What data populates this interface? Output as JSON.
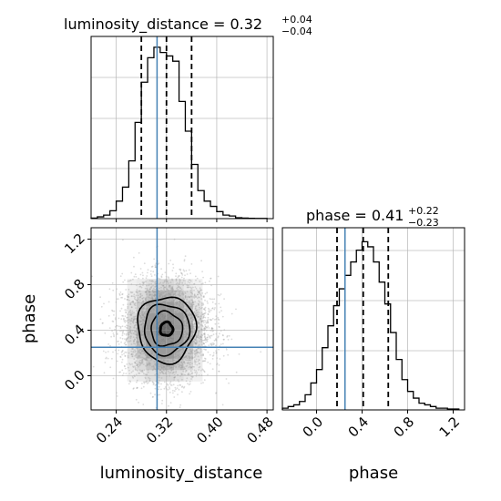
{
  "chart_data": {
    "type": "corner",
    "parameters": [
      "luminosity_distance",
      "phase"
    ],
    "truth": {
      "luminosity_distance": 0.305,
      "phase": 0.25
    },
    "colors": {
      "truth": "#4682b4",
      "hist": "#000000",
      "quantile": "#000000",
      "grid": "#b0b0b0",
      "points": "#9a9a9a"
    },
    "panels": {
      "luminosity_distance": {
        "title_prefix": "luminosity_distance = 0.32",
        "title_plus": "+0.04",
        "title_minus": "−0.04",
        "range": [
          0.2,
          0.49
        ],
        "bin_edges": [
          0.2,
          0.21,
          0.22,
          0.23,
          0.24,
          0.25,
          0.26,
          0.27,
          0.28,
          0.29,
          0.3,
          0.31,
          0.32,
          0.33,
          0.34,
          0.35,
          0.36,
          0.37,
          0.38,
          0.39,
          0.4,
          0.41,
          0.42,
          0.43,
          0.44,
          0.45,
          0.46,
          0.47,
          0.48
        ],
        "counts": [
          0.3,
          1.0,
          2.0,
          4.5,
          10.0,
          18.0,
          33.0,
          55.0,
          78.0,
          92.0,
          98.0,
          95.0,
          93.0,
          90.0,
          67.0,
          50.0,
          31.0,
          16.0,
          10.0,
          7.0,
          4.0,
          2.0,
          1.5,
          0.5,
          0.3,
          0.2,
          0.1,
          0.1
        ],
        "ymax": 100,
        "quantiles": [
          0.28,
          0.32,
          0.36
        ],
        "truth": 0.305
      },
      "phase": {
        "title_prefix": "phase = 0.41",
        "title_plus": "+0.22",
        "title_minus": "−0.23",
        "range": [
          -0.3,
          1.3
        ],
        "bin_edges": [
          -0.3,
          -0.25,
          -0.2,
          -0.15,
          -0.1,
          -0.05,
          0.0,
          0.05,
          0.1,
          0.15,
          0.2,
          0.25,
          0.3,
          0.35,
          0.4,
          0.45,
          0.5,
          0.55,
          0.6,
          0.65,
          0.7,
          0.75,
          0.8,
          0.85,
          0.9,
          0.95,
          1.0,
          1.05,
          1.1,
          1.15,
          1.2,
          1.25
        ],
        "counts": [
          1,
          2,
          3,
          5,
          9,
          16,
          24,
          37,
          50,
          62,
          72,
          80,
          88,
          95,
          100,
          97,
          88,
          76,
          63,
          46,
          30,
          18,
          11,
          7,
          4,
          3,
          2,
          1,
          1,
          0.5,
          0.5
        ],
        "ymax": 104,
        "quantiles": [
          0.18,
          0.41,
          0.63
        ],
        "truth": 0.25
      }
    },
    "scatter": {
      "x_range": [
        0.2,
        0.49
      ],
      "y_range": [
        -0.3,
        1.3
      ],
      "center": [
        0.32,
        0.41
      ],
      "sigma": [
        0.035,
        0.22
      ],
      "n_points": 4200,
      "contour_levels": [
        {
          "rx": 0.046,
          "ry": 0.29
        },
        {
          "rx": 0.036,
          "ry": 0.22
        },
        {
          "rx": 0.025,
          "ry": 0.15
        },
        {
          "rx": 0.01,
          "ry": 0.06
        }
      ],
      "density_grid": {
        "x_centers": [
          0.265,
          0.28,
          0.295,
          0.31,
          0.325,
          0.34,
          0.355,
          0.37
        ],
        "y_centers": [
          0.0,
          0.1,
          0.2,
          0.3,
          0.4,
          0.5,
          0.6,
          0.7,
          0.8
        ],
        "values": [
          [
            0.1,
            0.15,
            0.22,
            0.28,
            0.28,
            0.22,
            0.15,
            0.1
          ],
          [
            0.15,
            0.25,
            0.4,
            0.5,
            0.5,
            0.4,
            0.25,
            0.15
          ],
          [
            0.2,
            0.38,
            0.55,
            0.7,
            0.7,
            0.55,
            0.38,
            0.2
          ],
          [
            0.25,
            0.45,
            0.7,
            0.85,
            0.85,
            0.7,
            0.45,
            0.25
          ],
          [
            0.28,
            0.5,
            0.75,
            0.95,
            0.95,
            0.75,
            0.5,
            0.28
          ],
          [
            0.25,
            0.45,
            0.7,
            0.85,
            0.85,
            0.7,
            0.45,
            0.25
          ],
          [
            0.2,
            0.38,
            0.55,
            0.7,
            0.7,
            0.55,
            0.38,
            0.2
          ],
          [
            0.15,
            0.25,
            0.4,
            0.5,
            0.5,
            0.4,
            0.25,
            0.15
          ],
          [
            0.1,
            0.15,
            0.22,
            0.28,
            0.28,
            0.22,
            0.15,
            0.1
          ]
        ]
      }
    },
    "x_ticks_distance": [
      "0.24",
      "0.32",
      "0.40",
      "0.48"
    ],
    "x_ticks_distance_values": [
      0.24,
      0.32,
      0.4,
      0.48
    ],
    "y_ticks_phase": [
      "0.0",
      "0.4",
      "0.8",
      "1.2"
    ],
    "y_ticks_phase_values": [
      0.0,
      0.4,
      0.8,
      1.2
    ],
    "x_ticks_phase": [
      "0.0",
      "0.4",
      "0.8",
      "1.2"
    ],
    "x_ticks_phase_values": [
      0.0,
      0.4,
      0.8,
      1.2
    ],
    "xlabel_left": "luminosity_distance",
    "xlabel_right": "phase",
    "ylabel": "phase"
  }
}
